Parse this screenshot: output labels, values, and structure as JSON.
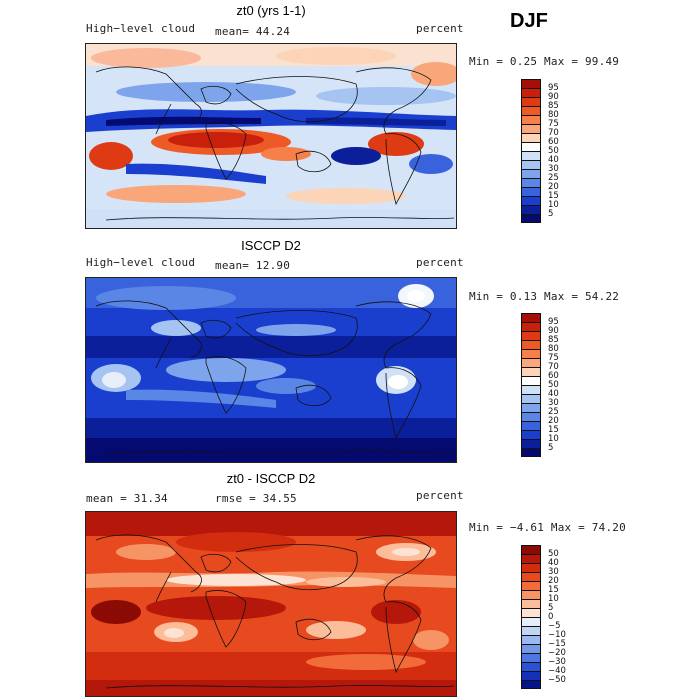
{
  "season": "DJF",
  "panels": [
    {
      "title": "zt0 (yrs 1-1)",
      "left_label": "High−level cloud",
      "center_label": "mean=  44.24",
      "right_label": "percent",
      "minmax": "Min =   0.25 Max =  99.49",
      "colorbar_labels": [
        "95",
        "90",
        "85",
        "80",
        "75",
        "70",
        "60",
        "50",
        "40",
        "30",
        "25",
        "20",
        "15",
        "10",
        "5"
      ],
      "colors": [
        "#a50f06",
        "#c8200c",
        "#de3a14",
        "#ee5a26",
        "#f6804a",
        "#f9a77a",
        "#fcd4b8",
        "#ffffff",
        "#cfe0f7",
        "#a6c4f2",
        "#7ea5ec",
        "#5a86e6",
        "#3863dd",
        "#1a3fcf",
        "#0c1f9a",
        "#050a70"
      ]
    },
    {
      "title": "ISCCP D2",
      "left_label": "High−level cloud",
      "center_label": "mean=  12.90",
      "right_label": "percent",
      "minmax": "Min =   0.13 Max =  54.22",
      "colorbar_labels": [
        "95",
        "90",
        "85",
        "80",
        "75",
        "70",
        "60",
        "50",
        "40",
        "30",
        "25",
        "20",
        "15",
        "10",
        "5"
      ],
      "colors": [
        "#a50f06",
        "#c8200c",
        "#de3a14",
        "#ee5a26",
        "#f6804a",
        "#f9a77a",
        "#fcd4b8",
        "#ffffff",
        "#cfe0f7",
        "#a6c4f2",
        "#7ea5ec",
        "#5a86e6",
        "#3863dd",
        "#1a3fcf",
        "#0c1f9a",
        "#050a70"
      ]
    },
    {
      "title": "zt0 - ISCCP D2",
      "left_label": "mean =   31.34",
      "center_label": "rmse =   34.55",
      "right_label": "percent",
      "minmax": "Min =  −4.61 Max =  74.20",
      "colorbar_labels": [
        "50",
        "40",
        "30",
        "20",
        "15",
        "10",
        "5",
        "0",
        "−5",
        "−10",
        "−15",
        "−20",
        "−30",
        "−40",
        "−50"
      ],
      "colors": [
        "#8c0a04",
        "#b5170a",
        "#d32d10",
        "#e64a1e",
        "#f26b3a",
        "#f79466",
        "#fbbd9a",
        "#fde3d3",
        "#e6eefb",
        "#c2d5f5",
        "#9bb9ef",
        "#7498e8",
        "#4d76e0",
        "#2a52d6",
        "#1430b8",
        "#07138a"
      ]
    }
  ]
}
